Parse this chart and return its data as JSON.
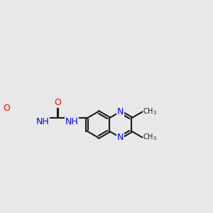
{
  "background_color": "#e8e8e8",
  "bond_color": "#1a1a1a",
  "nitrogen_color": "#0000ff",
  "oxygen_color": "#ff0000",
  "line_width": 1.5,
  "font_size": 9,
  "figsize": [
    3.0,
    3.0
  ],
  "dpi": 100,
  "xlim": [
    -1.0,
    8.5
  ],
  "ylim": [
    -1.5,
    3.5
  ]
}
